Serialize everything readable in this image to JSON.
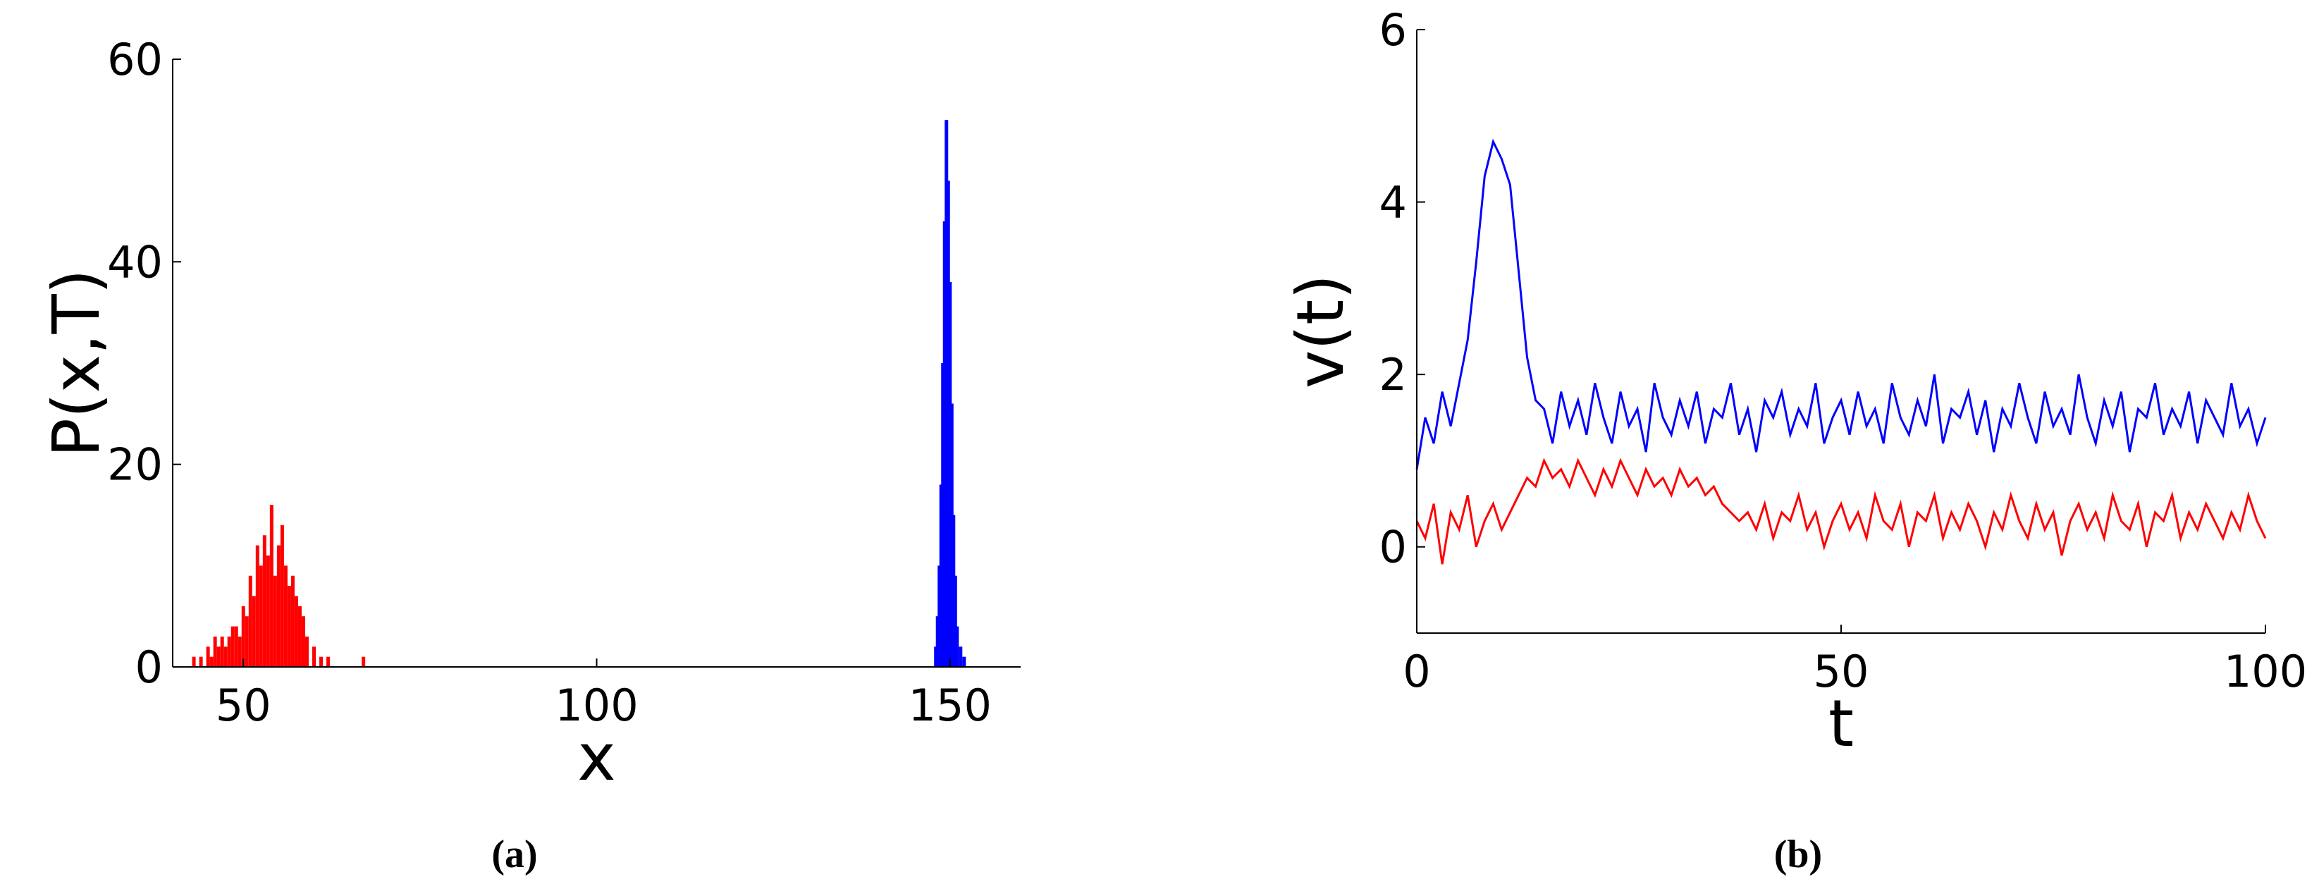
{
  "chart_data": [
    {
      "type": "bar",
      "xlabel": "x",
      "ylabel": "P(x,T)",
      "caption": "(a)",
      "xlim": [
        40,
        160
      ],
      "xticks": [
        50,
        100,
        150
      ],
      "ylim": [
        0,
        60
      ],
      "yticks": [
        0,
        20,
        40,
        60
      ],
      "series": [
        {
          "color": "#ff0000",
          "x": [
            43,
            44,
            45,
            45.5,
            46,
            46.5,
            47,
            47.5,
            48,
            48.5,
            49,
            49.5,
            50,
            50.5,
            51,
            51.5,
            52,
            52.5,
            53,
            53.5,
            54,
            54.5,
            55,
            55.5,
            56,
            56.5,
            57,
            57.5,
            58,
            58.5,
            59,
            60,
            61,
            62,
            67
          ],
          "values": [
            1,
            1,
            2,
            1,
            3,
            2,
            3,
            2,
            3,
            4,
            4,
            3,
            6,
            5,
            9,
            7,
            12,
            10,
            13,
            11,
            16,
            9,
            12,
            14,
            10,
            8,
            9,
            7,
            6,
            5,
            3,
            2,
            1,
            1,
            1
          ]
        },
        {
          "color": "#0000ff",
          "x": [
            148,
            148.25,
            148.5,
            148.75,
            149,
            149.25,
            149.5,
            149.75,
            150,
            150.25,
            150.5,
            150.75,
            151,
            151.5,
            152
          ],
          "values": [
            2,
            5,
            10,
            18,
            30,
            44,
            54,
            48,
            38,
            26,
            15,
            9,
            4,
            2,
            1
          ]
        }
      ]
    },
    {
      "type": "line",
      "xlabel": "t",
      "ylabel": "v(t)",
      "caption": "(b)",
      "xlim": [
        0,
        100
      ],
      "xticks": [
        0,
        50,
        100
      ],
      "ylim": [
        -1,
        6
      ],
      "yticks": [
        0,
        2,
        4,
        6
      ],
      "x": [
        0,
        1,
        2,
        3,
        4,
        5,
        6,
        7,
        8,
        9,
        10,
        11,
        12,
        13,
        14,
        15,
        16,
        17,
        18,
        19,
        20,
        21,
        22,
        23,
        24,
        25,
        26,
        27,
        28,
        29,
        30,
        31,
        32,
        33,
        34,
        35,
        36,
        37,
        38,
        39,
        40,
        41,
        42,
        43,
        44,
        45,
        46,
        47,
        48,
        49,
        50,
        51,
        52,
        53,
        54,
        55,
        56,
        57,
        58,
        59,
        60,
        61,
        62,
        63,
        64,
        65,
        66,
        67,
        68,
        69,
        70,
        71,
        72,
        73,
        74,
        75,
        76,
        77,
        78,
        79,
        80,
        81,
        82,
        83,
        84,
        85,
        86,
        87,
        88,
        89,
        90,
        91,
        92,
        93,
        94,
        95,
        96,
        97,
        98,
        99,
        100
      ],
      "series": [
        {
          "color": "#0000ff",
          "values": [
            0.9,
            1.5,
            1.2,
            1.8,
            1.4,
            1.9,
            2.4,
            3.3,
            4.3,
            4.7,
            4.5,
            4.2,
            3.2,
            2.2,
            1.7,
            1.6,
            1.2,
            1.8,
            1.4,
            1.7,
            1.3,
            1.9,
            1.5,
            1.2,
            1.8,
            1.4,
            1.6,
            1.1,
            1.9,
            1.5,
            1.3,
            1.7,
            1.4,
            1.8,
            1.2,
            1.6,
            1.5,
            1.9,
            1.3,
            1.6,
            1.1,
            1.7,
            1.5,
            1.8,
            1.3,
            1.6,
            1.4,
            1.9,
            1.2,
            1.5,
            1.7,
            1.3,
            1.8,
            1.4,
            1.6,
            1.2,
            1.9,
            1.5,
            1.3,
            1.7,
            1.4,
            2.0,
            1.2,
            1.6,
            1.5,
            1.8,
            1.3,
            1.7,
            1.1,
            1.6,
            1.4,
            1.9,
            1.5,
            1.2,
            1.8,
            1.4,
            1.6,
            1.3,
            2.0,
            1.5,
            1.2,
            1.7,
            1.4,
            1.8,
            1.1,
            1.6,
            1.5,
            1.9,
            1.3,
            1.6,
            1.4,
            1.8,
            1.2,
            1.7,
            1.5,
            1.3,
            1.9,
            1.4,
            1.6,
            1.2,
            1.5
          ]
        },
        {
          "color": "#ff0000",
          "values": [
            0.3,
            0.1,
            0.5,
            -0.2,
            0.4,
            0.2,
            0.6,
            0.0,
            0.3,
            0.5,
            0.2,
            0.4,
            0.6,
            0.8,
            0.7,
            1.0,
            0.8,
            0.9,
            0.7,
            1.0,
            0.8,
            0.6,
            0.9,
            0.7,
            1.0,
            0.8,
            0.6,
            0.9,
            0.7,
            0.8,
            0.6,
            0.9,
            0.7,
            0.8,
            0.6,
            0.7,
            0.5,
            0.4,
            0.3,
            0.4,
            0.2,
            0.5,
            0.1,
            0.4,
            0.3,
            0.6,
            0.2,
            0.4,
            0.0,
            0.3,
            0.5,
            0.2,
            0.4,
            0.1,
            0.6,
            0.3,
            0.2,
            0.5,
            0.0,
            0.4,
            0.3,
            0.6,
            0.1,
            0.4,
            0.2,
            0.5,
            0.3,
            0.0,
            0.4,
            0.2,
            0.6,
            0.3,
            0.1,
            0.5,
            0.2,
            0.4,
            -0.1,
            0.3,
            0.5,
            0.2,
            0.4,
            0.1,
            0.6,
            0.3,
            0.2,
            0.5,
            0.0,
            0.4,
            0.3,
            0.6,
            0.1,
            0.4,
            0.2,
            0.5,
            0.3,
            0.1,
            0.4,
            0.2,
            0.6,
            0.3,
            0.1
          ]
        }
      ]
    }
  ]
}
